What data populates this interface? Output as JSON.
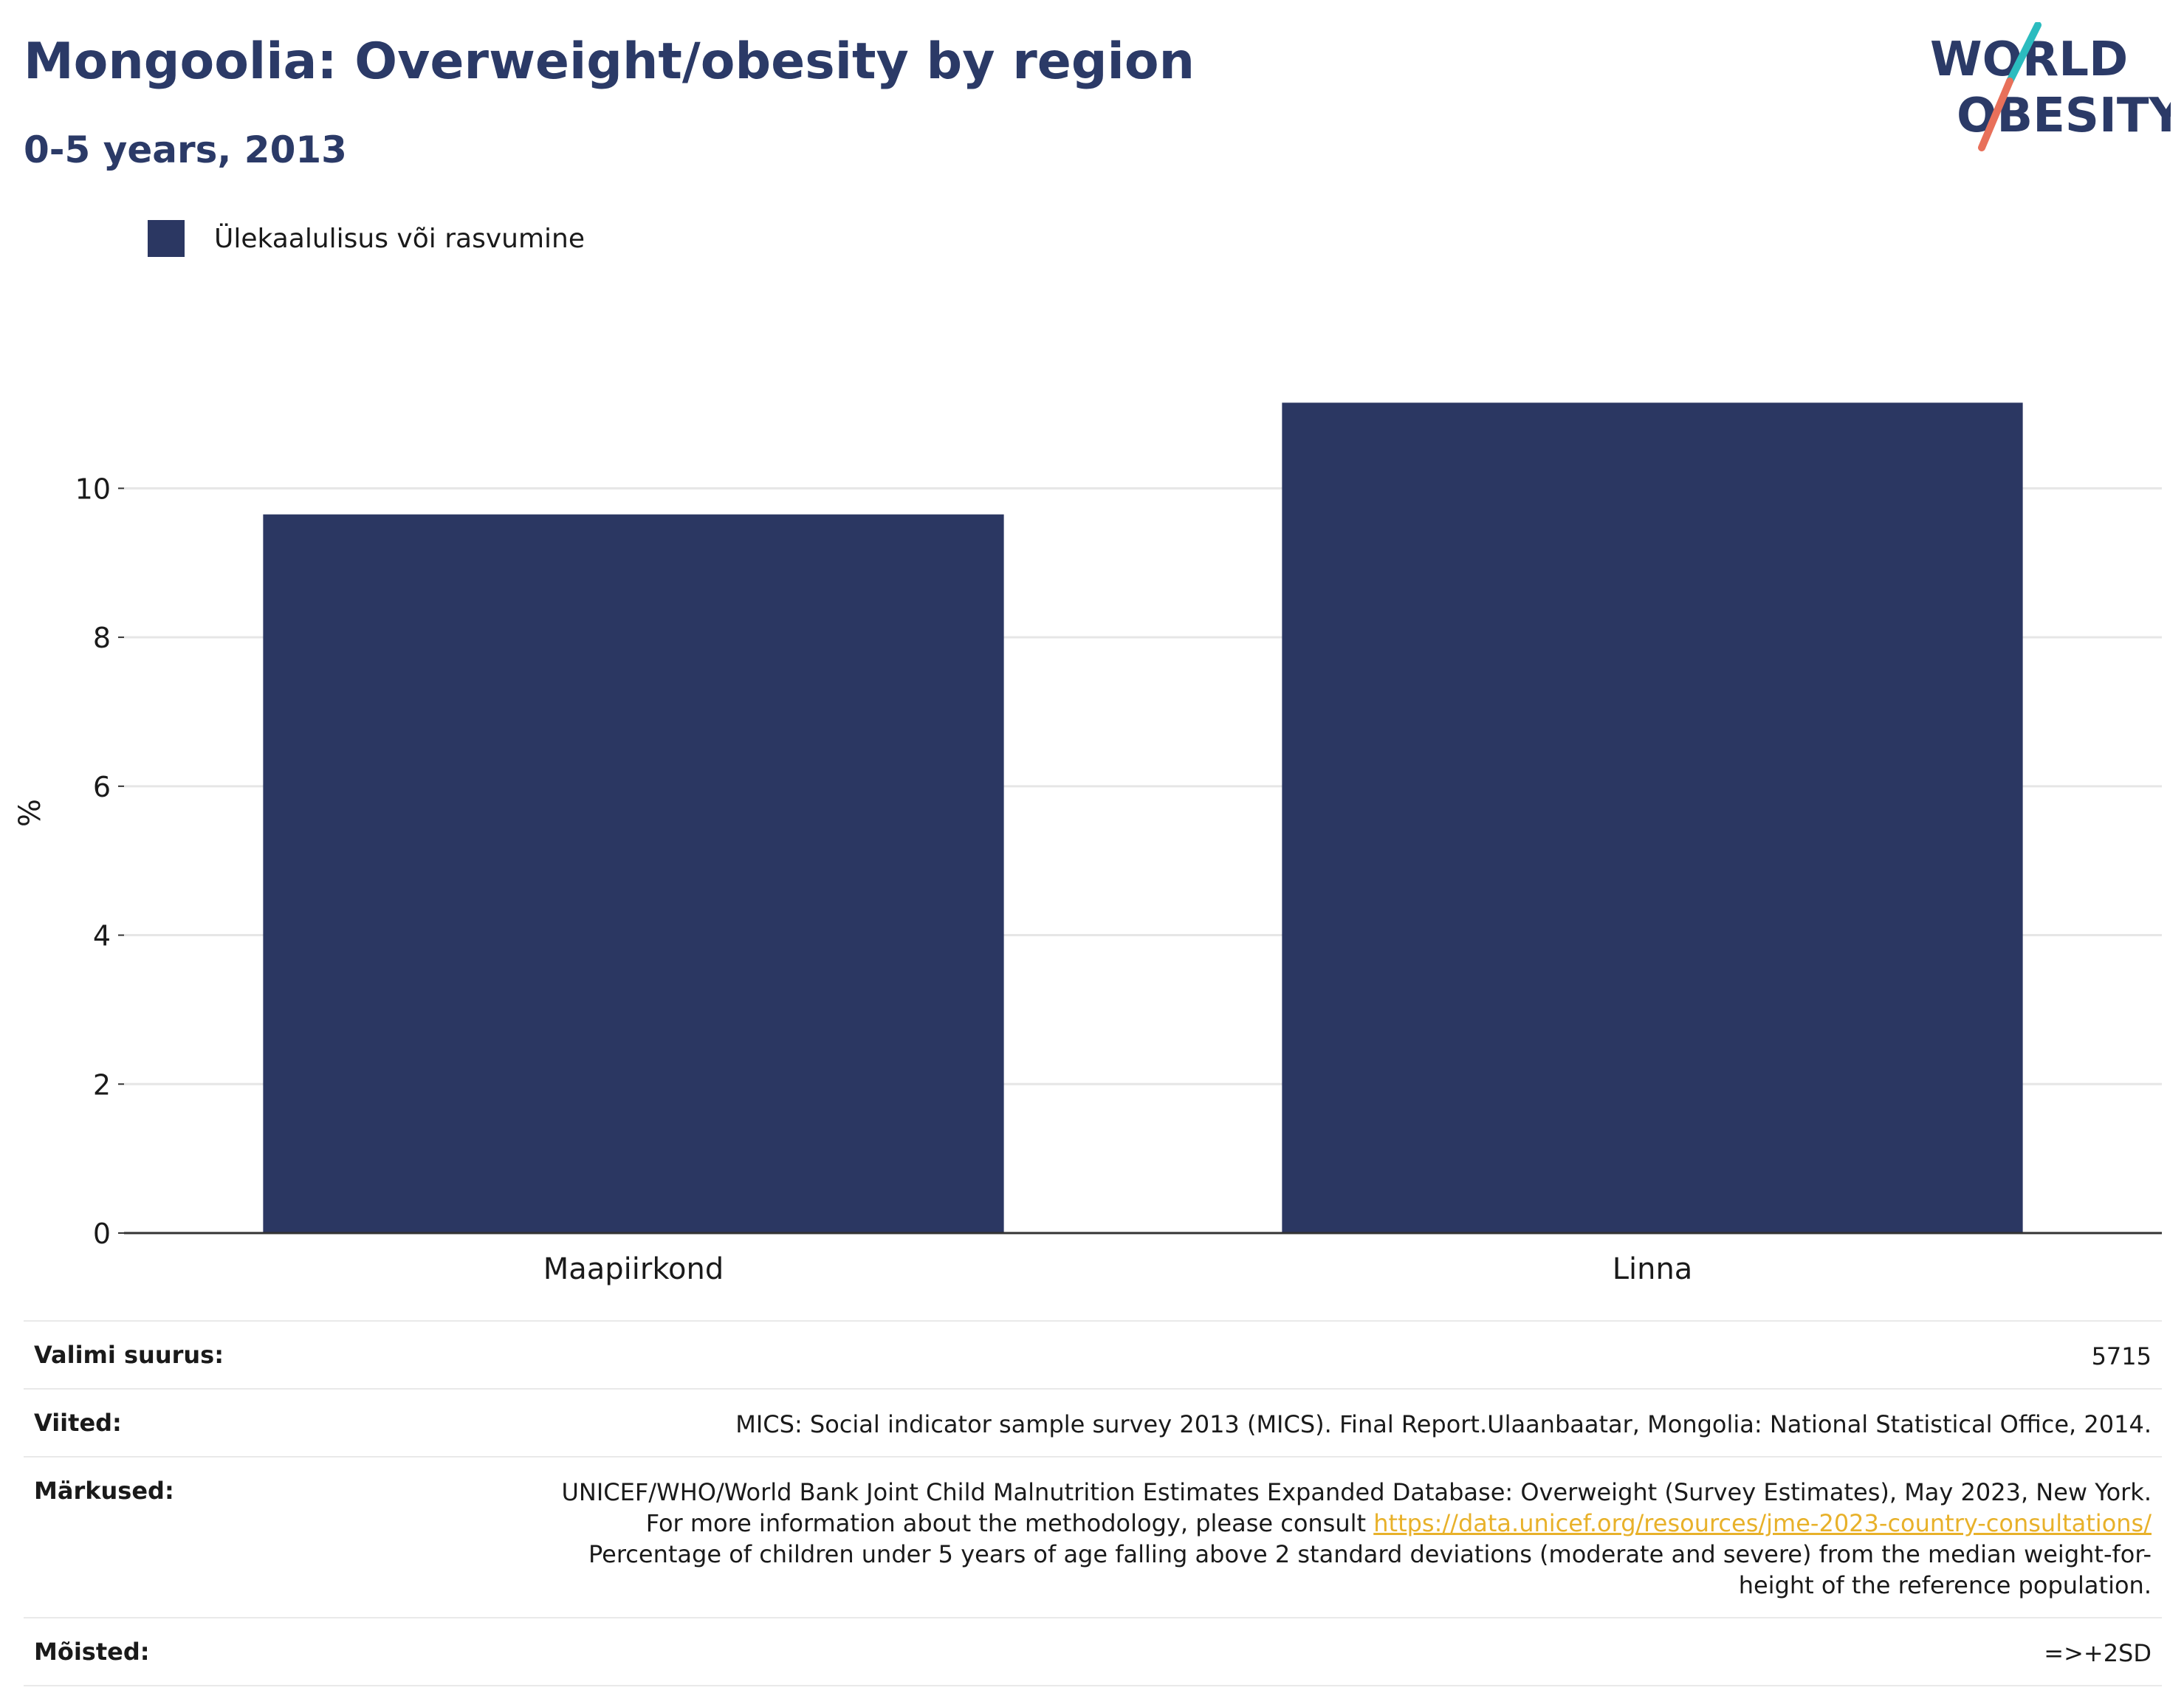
{
  "header": {
    "title": "Mongoolia: Overweight/obesity by region",
    "subtitle": "0-5 years, 2013"
  },
  "logo": {
    "line1": "WORLD",
    "line2": "OBESITY",
    "teal": "#2bbcbf",
    "coral": "#e8705a"
  },
  "legend": {
    "label": "Ülekaalulisus või rasvumine",
    "color": "#2b3762"
  },
  "chart_data": {
    "type": "bar",
    "categories": [
      "Maapiirkond",
      "Linna"
    ],
    "series": [
      {
        "name": "Ülekaalulisus või rasvumine",
        "values": [
          9.65,
          11.15
        ],
        "color": "#2b3762"
      }
    ],
    "ylabel": "%",
    "ylim": [
      0,
      11.6
    ],
    "yticks": [
      0,
      2,
      4,
      6,
      8,
      10
    ],
    "grid": true,
    "legend_position": "top-left"
  },
  "info": {
    "sample_size_label": "Valimi suurus:",
    "sample_size_value": "5715",
    "references_label": "Viited:",
    "references_value": "MICS: Social indicator sample survey 2013 (MICS). Final Report.Ulaanbaatar, Mongolia: National Statistical Office, 2014.",
    "notes_label": "Märkused:",
    "notes_value_part1": "UNICEF/WHO/World Bank Joint Child Malnutrition Estimates Expanded Database: Overweight (Survey Estimates), May 2023, New York. For more information about the methodology, please consult",
    "notes_link": "https://data.unicef.org/resources/jme-2023-country-consultations/",
    "notes_value_part2": "Percentage of children under 5 years of age falling above 2 standard deviations (moderate and severe) from the median weight-for-height of the reference population.",
    "definitions_label": "Mõisted:",
    "definitions_value": "=>+2SD"
  }
}
